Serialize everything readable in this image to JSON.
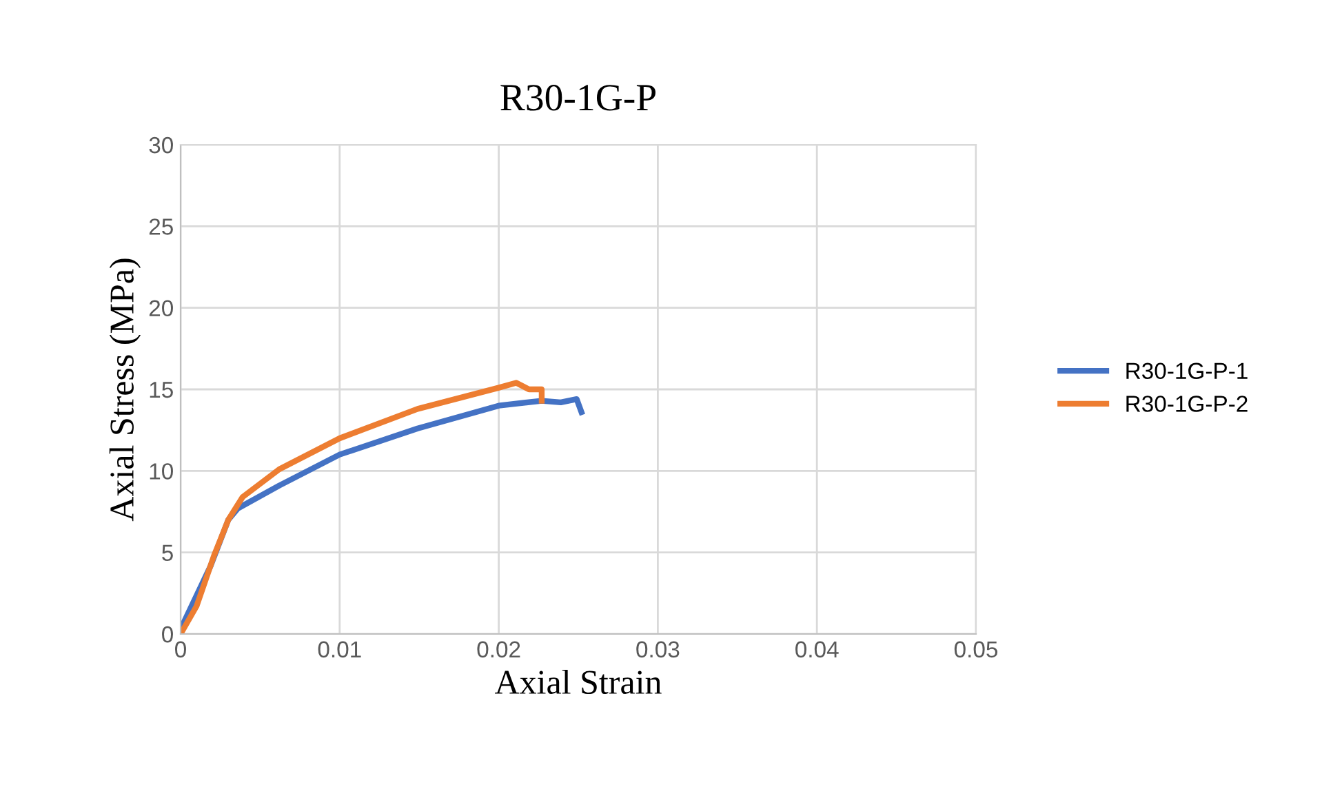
{
  "chart_data": {
    "type": "line",
    "title": "R30-1G-P",
    "xlabel": "Axial Strain",
    "ylabel": "Axial Stress (MPa)",
    "xlim": [
      0,
      0.05
    ],
    "xticks": [
      0,
      0.01,
      0.02,
      0.03,
      0.04,
      0.05
    ],
    "ylim": [
      0,
      30
    ],
    "yticks": [
      0,
      5,
      10,
      15,
      20,
      25,
      30
    ],
    "grid": true,
    "legend": "right",
    "marker": "none",
    "line_style": "solid",
    "series": [
      {
        "name": "R30-1G-P-1",
        "color": "#4472c4",
        "x": [
          0,
          0.0019,
          0.003,
          0.0036,
          0.0062,
          0.01,
          0.0149,
          0.02,
          0.0227,
          0.0239,
          0.0249,
          0.0252
        ],
        "values": [
          0.3,
          4.2,
          7.0,
          7.7,
          9.1,
          11.0,
          12.6,
          14.0,
          14.3,
          14.2,
          14.4,
          13.6
        ]
      },
      {
        "name": "R30-1G-P-2",
        "color": "#ed7d31",
        "x": [
          0,
          0.001,
          0.0021,
          0.003,
          0.0039,
          0.0062,
          0.01,
          0.0149,
          0.02,
          0.0211,
          0.0219,
          0.0227,
          0.0227
        ],
        "values": [
          0,
          1.7,
          4.8,
          7.0,
          8.4,
          10.1,
          12.0,
          13.8,
          15.1,
          15.4,
          15.0,
          15.0,
          14.3
        ]
      }
    ]
  }
}
